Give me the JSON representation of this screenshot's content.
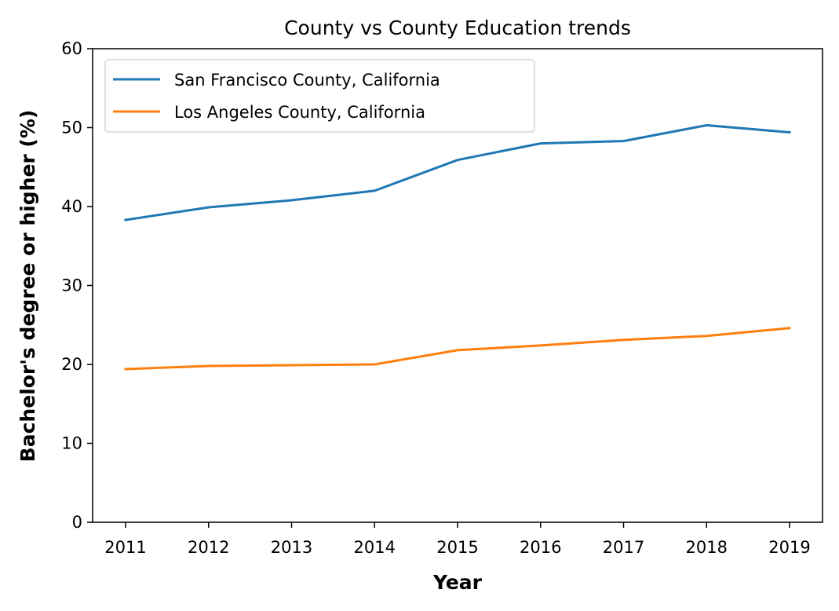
{
  "chart_data": {
    "type": "line",
    "title": "County vs County Education trends",
    "xlabel": "Year",
    "ylabel": "Bachelor's degree or higher (%)",
    "x": [
      "2011",
      "2012",
      "2013",
      "2014",
      "2015",
      "2016",
      "2017",
      "2018",
      "2019"
    ],
    "ylim": [
      0,
      60
    ],
    "yticks": [
      "0",
      "10",
      "20",
      "30",
      "40",
      "50",
      "60"
    ],
    "grid": false,
    "legend_position": "top-left",
    "series": [
      {
        "name": "San Francisco County, California",
        "color": "#1f77b4",
        "values": [
          38.3,
          39.9,
          40.8,
          42.0,
          45.9,
          48.0,
          48.3,
          50.3,
          49.4
        ]
      },
      {
        "name": "Los Angeles County, California",
        "color": "#ff7f0e",
        "values": [
          19.4,
          19.8,
          19.9,
          20.0,
          21.8,
          22.4,
          23.1,
          23.6,
          24.6
        ]
      }
    ]
  }
}
